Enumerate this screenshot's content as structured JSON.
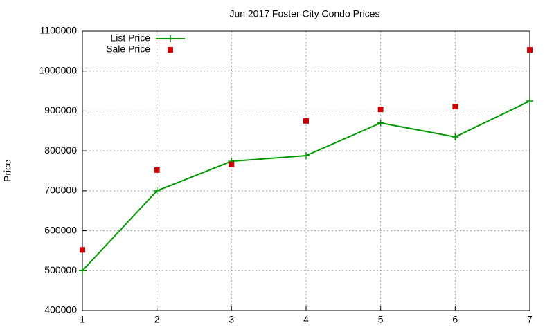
{
  "chart_data": {
    "type": "line",
    "title": "Jun 2017 Foster City Condo Prices",
    "y_label": "Price",
    "x": [
      1,
      2,
      3,
      4,
      5,
      6,
      7
    ],
    "series": [
      {
        "name": "List Price",
        "color": "#009900",
        "style": "linespoints",
        "values": [
          500000,
          700000,
          774000,
          788000,
          870000,
          835000,
          925000
        ]
      },
      {
        "name": "Sale Price",
        "color": "#cc0000",
        "style": "points",
        "values": [
          552000,
          752000,
          766000,
          875000,
          904000,
          911000,
          1053000
        ]
      }
    ],
    "xlim": [
      1,
      7
    ],
    "xticks": [
      1,
      2,
      3,
      4,
      5,
      6,
      7
    ],
    "ylim": [
      400000,
      1100000
    ],
    "yticks": [
      400000,
      500000,
      600000,
      700000,
      800000,
      900000,
      1000000,
      1100000
    ],
    "grid": true,
    "legend": "top-left"
  }
}
